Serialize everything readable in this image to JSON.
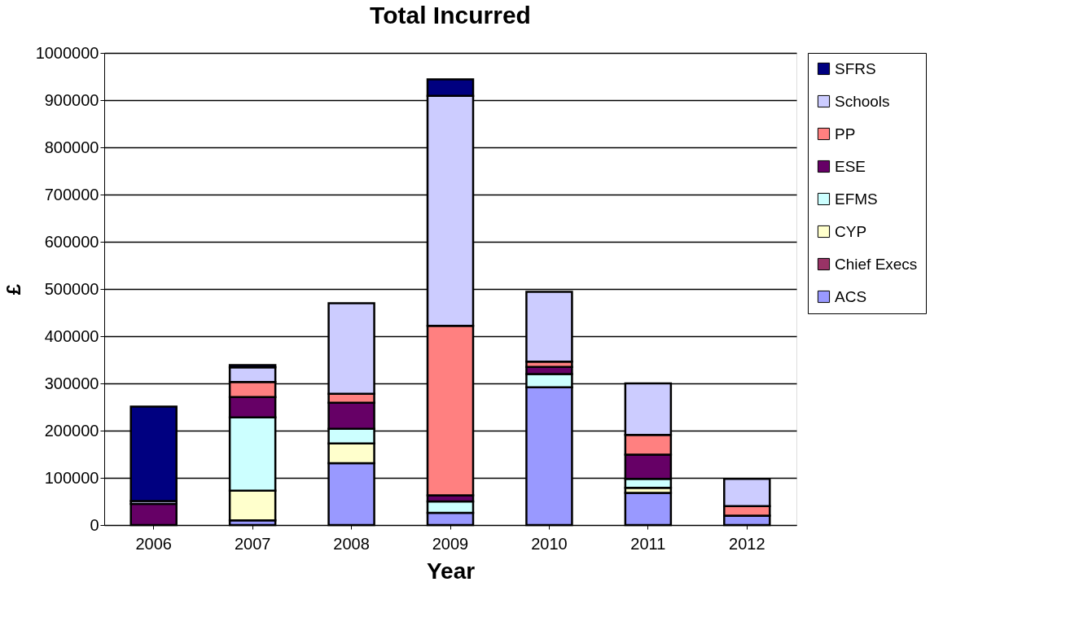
{
  "chart_data": {
    "type": "bar",
    "title": "Total Incurred",
    "xlabel": "Year",
    "ylabel": "£",
    "categories": [
      "2006",
      "2007",
      "2008",
      "2009",
      "2010",
      "2011",
      "2012"
    ],
    "stacked": true,
    "ylim": [
      0,
      1000000
    ],
    "yticks": [
      0,
      100000,
      200000,
      300000,
      400000,
      500000,
      600000,
      700000,
      800000,
      900000,
      1000000
    ],
    "grid": "y",
    "legend": "right",
    "series": [
      {
        "name": "ACS",
        "color": "#9999ff",
        "values": [
          null,
          10000,
          131000,
          26000,
          292000,
          68000,
          20000
        ]
      },
      {
        "name": "Chief Execs",
        "color": "#993366",
        "values": [
          null,
          null,
          null,
          null,
          null,
          null,
          null
        ]
      },
      {
        "name": "CYP",
        "color": "#ffffcc",
        "values": [
          null,
          63000,
          42000,
          null,
          null,
          11000,
          null
        ]
      },
      {
        "name": "EFMS",
        "color": "#ccffff",
        "values": [
          null,
          155000,
          31000,
          24000,
          28000,
          19000,
          null
        ]
      },
      {
        "name": "ESE",
        "color": "#660066",
        "values": [
          45000,
          43000,
          55000,
          13000,
          15000,
          51000,
          null
        ]
      },
      {
        "name": "PP",
        "color": "#ff8080",
        "values": [
          null,
          32000,
          19000,
          359000,
          11000,
          42000,
          20000
        ]
      },
      {
        "name": "Schools",
        "color": "#ccccff",
        "values": [
          6000,
          31000,
          192000,
          487000,
          148000,
          109000,
          58000
        ]
      },
      {
        "name": "SFRS",
        "color": "#000080",
        "values": [
          200000,
          5000,
          null,
          35000,
          null,
          null,
          null
        ]
      }
    ]
  }
}
